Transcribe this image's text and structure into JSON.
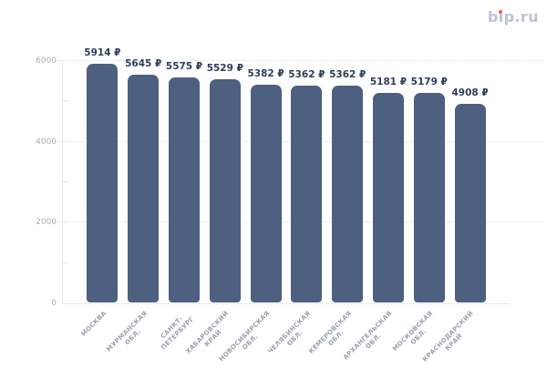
{
  "logo": {
    "pre": "b",
    "i": "i",
    "post": "p.ru"
  },
  "chart_data": {
    "type": "bar",
    "title": "",
    "xlabel": "",
    "ylabel": "",
    "legend": "none",
    "categories": [
      "МОСКВА",
      "МУРМАНСКАЯ\nОБЛ.",
      "САНКТ-\nПЕТЕРБУРГ",
      "ХАБАРОВСКИЙ\nКРАЙ",
      "НОВОСИБИРСКАЯ\nОБЛ.",
      "ЧЕЛЯБИНСКАЯ\nОБЛ.",
      "КЕМЕРОВСКАЯ\nОБЛ.",
      "АРХАНГЕЛЬСКАЯ\nОБЛ.",
      "МОСКОВСКАЯ\nОБЛ.",
      "КРАСНОДАРСКИЙ\nКРАЙ"
    ],
    "values": [
      5914,
      5645,
      5575,
      5529,
      5382,
      5362,
      5362,
      5181,
      5179,
      4908
    ],
    "value_suffix": "₽",
    "ylim": [
      0,
      6000
    ],
    "ytick_major": [
      0,
      2000,
      4000,
      6000
    ],
    "ytick_minor": [
      1000,
      3000,
      5000
    ],
    "grid": "dotted-horizontal-at-major-ticks",
    "colors": {
      "bar": "#4d6080",
      "value_label": "#2d3e5a",
      "x_tick_label": "#99a3ae",
      "y_tick_label": "#a7afba",
      "axis_line": "#e6e9ed",
      "gridline": "#dde1e7",
      "logo_text": "#bcc3d6",
      "logo_dot": "#e8604a",
      "background": "#ffffff"
    }
  }
}
